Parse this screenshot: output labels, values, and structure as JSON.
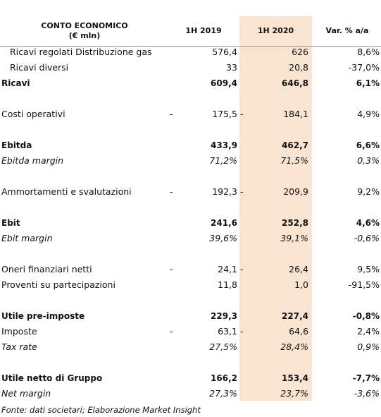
{
  "header": {
    "title_line1": "CONTO ECONOMICO",
    "title_line2": "(€ mln)",
    "col1": "1H 2019",
    "col2": "1H 2020",
    "col3": "Var. % a/a"
  },
  "rows": [
    {
      "label": "Ricavi regolati Distribuzione gas",
      "v1": "576,4",
      "v2": "626",
      "v3": "8,6%"
    },
    {
      "label": "Ricavi diversi",
      "v1": "33",
      "v2": "20,8",
      "v3": "-37,0%"
    },
    {
      "label": "Ricavi",
      "v1": "609,4",
      "v2": "646,8",
      "v3": "6,1%"
    },
    {
      "label": "Costi operativi",
      "v1": "175,5",
      "v2": "184,1",
      "v3": "4,9%",
      "d1": "-",
      "d2": "-"
    },
    {
      "label": "Ebitda",
      "v1": "433,9",
      "v2": "462,7",
      "v3": "6,6%"
    },
    {
      "label": "Ebitda margin",
      "v1": "71,2%",
      "v2": "71,5%",
      "v3": "0,3%"
    },
    {
      "label": "Ammortamenti e svalutazioni",
      "v1": "192,3",
      "v2": "209,9",
      "v3": "9,2%",
      "d1": "-",
      "d2": "-"
    },
    {
      "label": "Ebit",
      "v1": "241,6",
      "v2": "252,8",
      "v3": "4,6%"
    },
    {
      "label": "Ebit margin",
      "v1": "39,6%",
      "v2": "39,1%",
      "v3": "-0,6%"
    },
    {
      "label": "Oneri finanziari netti",
      "v1": "24,1",
      "v2": "26,4",
      "v3": "9,5%",
      "d1": "-",
      "d2": "-"
    },
    {
      "label": "Proventi su partecipazioni",
      "v1": "11,8",
      "v2": "1,0",
      "v3": "-91,5%"
    },
    {
      "label": "Utile pre-imposte",
      "v1": "229,3",
      "v2": "227,4",
      "v3": "-0,8%"
    },
    {
      "label": "Imposte",
      "v1": "63,1",
      "v2": "64,6",
      "v3": "2,4%",
      "d1": "-",
      "d2": "-"
    },
    {
      "label": "Tax rate",
      "v1": "27,5%",
      "v2": "28,4%",
      "v3": "0,9%"
    },
    {
      "label": "Utile netto di Gruppo",
      "v1": "166,2",
      "v2": "153,4",
      "v3": "-7,7%"
    },
    {
      "label": "Net margin",
      "v1": "27,3%",
      "v2": "23,7%",
      "v3": "-3,6%"
    }
  ],
  "footnote": "Fonte: dati societari; Elaborazione Market Insight"
}
